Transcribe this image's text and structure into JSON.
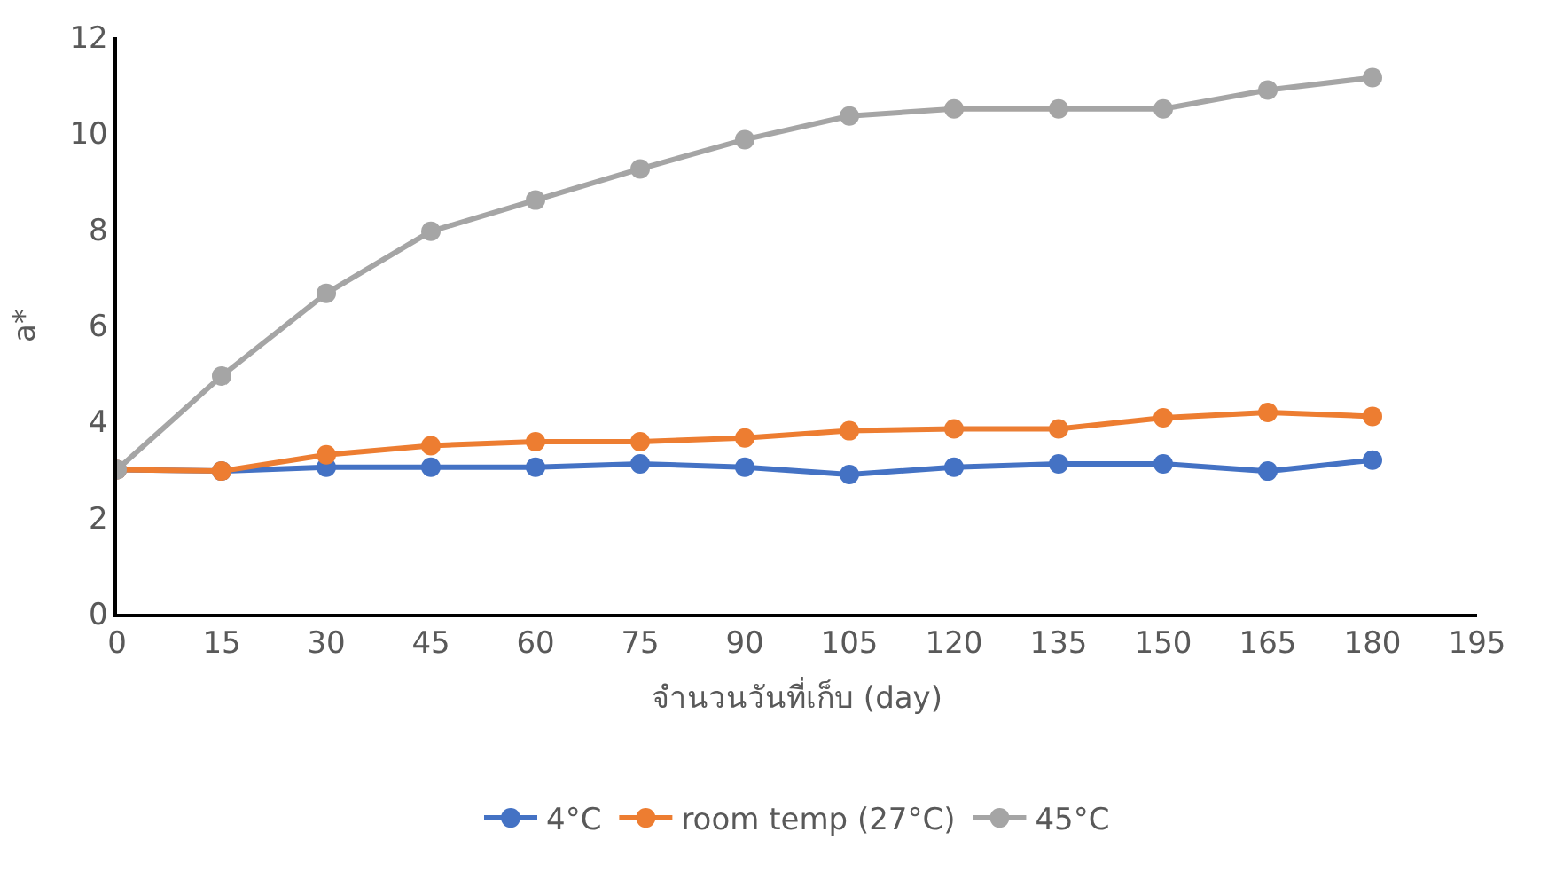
{
  "chart_data": {
    "type": "line",
    "xlabel": "จำนวนวันที่เก็บ (day)",
    "ylabel": "a*",
    "x": [
      0,
      15,
      30,
      45,
      60,
      75,
      90,
      105,
      120,
      135,
      150,
      165,
      180
    ],
    "series": [
      {
        "name": "4°C",
        "color": "#4472c4",
        "values": [
          3.0,
          2.97,
          3.05,
          3.05,
          3.05,
          3.12,
          3.05,
          2.9,
          3.05,
          3.12,
          3.12,
          2.97,
          3.2
        ]
      },
      {
        "name": "room temp (27°C)",
        "color": "#ed7d31",
        "values": [
          3.0,
          2.97,
          3.31,
          3.5,
          3.58,
          3.58,
          3.66,
          3.81,
          3.85,
          3.85,
          4.08,
          4.19,
          4.11
        ]
      },
      {
        "name": "45°C",
        "color": "#a5a5a5",
        "values": [
          3.0,
          4.95,
          6.67,
          7.96,
          8.61,
          9.26,
          9.87,
          10.36,
          10.51,
          10.51,
          10.51,
          10.9,
          11.16
        ]
      }
    ],
    "xlim": [
      0,
      195
    ],
    "xticks": [
      0,
      15,
      30,
      45,
      60,
      75,
      90,
      105,
      120,
      135,
      150,
      165,
      180,
      195
    ],
    "ylim": [
      0,
      12
    ],
    "yticks": [
      0,
      2,
      4,
      6,
      8,
      10,
      12
    ],
    "grid": false,
    "legend": "bottom",
    "marker": "circle",
    "line_style": "solid"
  }
}
